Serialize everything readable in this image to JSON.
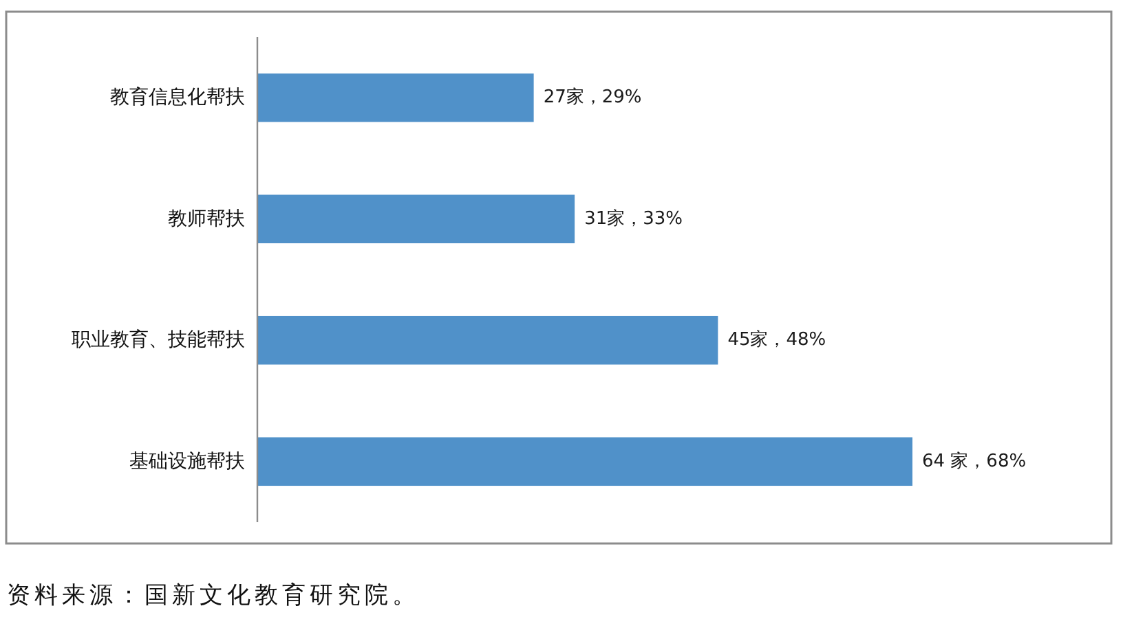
{
  "chart_data": {
    "type": "bar",
    "orientation": "horizontal",
    "categories": [
      "教育信息化帮扶",
      "教师帮扶",
      "职业教育、技能帮扶",
      "基础设施帮扶"
    ],
    "values": [
      27,
      31,
      45,
      64
    ],
    "value_labels": [
      "27家，29%",
      "31家，33%",
      "45家，48%",
      "64 家，68%"
    ],
    "color": "#5091c9",
    "annotations": [
      "资料来源：国新文化教育研究院。"
    ]
  }
}
